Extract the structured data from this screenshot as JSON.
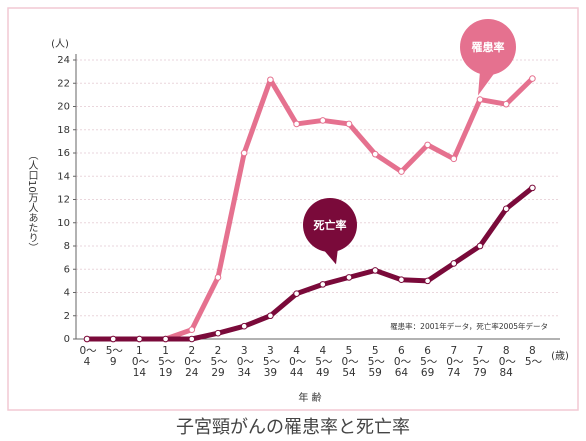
{
  "chart_data": {
    "type": "line",
    "title": "子宮頸がんの罹患率と死亡率",
    "y_unit": "(人)",
    "y_label": "（人口10万人あたり）",
    "x_label": "年 齢",
    "x_unit": "(歳)",
    "note": "罹患率：2001年データ，死亡率2005年データ",
    "categories": [
      "0〜4",
      "5〜9",
      "10〜14",
      "15〜19",
      "20〜24",
      "25〜29",
      "30〜34",
      "35〜39",
      "40〜44",
      "45〜49",
      "50〜54",
      "55〜59",
      "60〜64",
      "65〜69",
      "70〜74",
      "75〜79",
      "80〜84",
      "85〜"
    ],
    "series": [
      {
        "name": "罹患率",
        "color": "#e5718f",
        "values": [
          0,
          0,
          0,
          0,
          0.8,
          5.3,
          16,
          22.3,
          18.5,
          18.8,
          18.5,
          15.9,
          14.4,
          16.7,
          15.5,
          20.6,
          20.2,
          22.4
        ]
      },
      {
        "name": "死亡率",
        "color": "#7a0a3a",
        "values": [
          0,
          0,
          0,
          0,
          0,
          0.5,
          1.1,
          2,
          3.9,
          4.7,
          5.3,
          5.9,
          5.1,
          5,
          6.5,
          8,
          11.2,
          13
        ]
      }
    ],
    "ylim": [
      0,
      24
    ],
    "yticks": [
      0,
      2,
      4,
      6,
      8,
      10,
      12,
      14,
      16,
      18,
      20,
      22,
      24
    ],
    "grid": true
  }
}
